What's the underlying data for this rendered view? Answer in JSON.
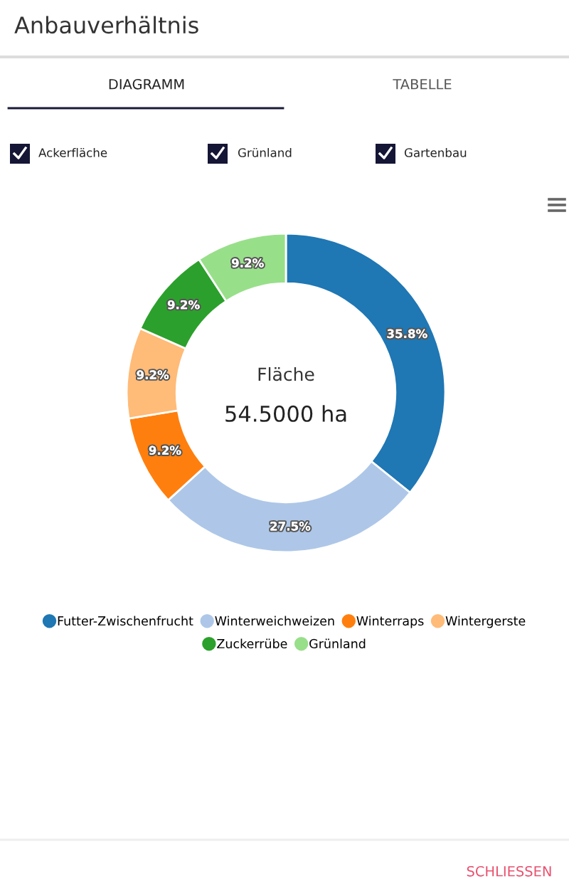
{
  "chart_data": {
    "type": "donut",
    "title": "Anbauverhältnis",
    "categories": [
      "Futter-Zwischenfrucht",
      "Winterweichweizen",
      "Winterraps",
      "Wintergerste",
      "Zuckerrübe",
      "Grünland"
    ],
    "values": [
      35.8,
      27.5,
      9.2,
      9.2,
      9.2,
      9.2
    ],
    "colors": [
      "#1f77b4",
      "#aec7e8",
      "#ff7f0e",
      "#ffbb78",
      "#2ca02c",
      "#98df8a"
    ],
    "value_labels": [
      "35.8%",
      "27.5%",
      "9.2%",
      "9.2%",
      "9.2%",
      "9.2%"
    ],
    "legend": "bottom",
    "annotations": [
      "DIAGRAMM",
      "TABELLE",
      "Ackerfläche",
      "Grünland",
      "Gartenbau",
      "Fläche",
      "54.5000 ha",
      "SCHLIESSEN"
    ]
  }
}
